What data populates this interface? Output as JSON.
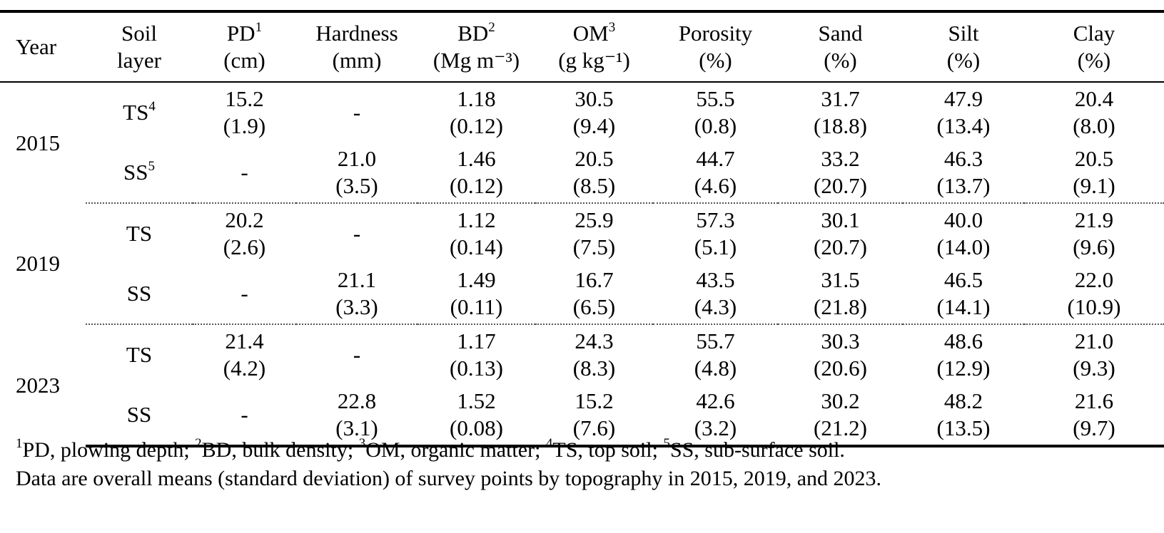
{
  "table": {
    "headers": [
      {
        "key": "year",
        "line1": "Year",
        "sup": "",
        "line2": ""
      },
      {
        "key": "layer",
        "line1": "Soil",
        "sup": "",
        "line2": "layer"
      },
      {
        "key": "pd",
        "line1": "PD",
        "sup": "1",
        "line2": "(cm)"
      },
      {
        "key": "hardness",
        "line1": "Hardness",
        "sup": "",
        "line2": "(mm)"
      },
      {
        "key": "bd",
        "line1": "BD",
        "sup": "2",
        "line2": "(Mg  m⁻³)"
      },
      {
        "key": "om",
        "line1": "OM",
        "sup": "3",
        "line2": "(g kg⁻¹)"
      },
      {
        "key": "porosity",
        "line1": "Porosity",
        "sup": "",
        "line2": "(%)"
      },
      {
        "key": "sand",
        "line1": "Sand",
        "sup": "",
        "line2": "(%)"
      },
      {
        "key": "silt",
        "line1": "Silt",
        "sup": "",
        "line2": "(%)"
      },
      {
        "key": "clay",
        "line1": "Clay",
        "sup": "",
        "line2": "(%)"
      }
    ],
    "groups": [
      {
        "year": "2015",
        "rows": [
          {
            "layer": "TS",
            "layer_sup": "4",
            "pd": [
              "15.2",
              "(1.9)"
            ],
            "hardness": [
              "-",
              ""
            ],
            "bd": [
              "1.18",
              "(0.12)"
            ],
            "om": [
              "30.5",
              "(9.4)"
            ],
            "porosity": [
              "55.5",
              "(0.8)"
            ],
            "sand": [
              "31.7",
              "(18.8)"
            ],
            "silt": [
              "47.9",
              "(13.4)"
            ],
            "clay": [
              "20.4",
              "(8.0)"
            ]
          },
          {
            "layer": "SS",
            "layer_sup": "5",
            "pd": [
              "-",
              ""
            ],
            "hardness": [
              "21.0",
              "(3.5)"
            ],
            "bd": [
              "1.46",
              "(0.12)"
            ],
            "om": [
              "20.5",
              "(8.5)"
            ],
            "porosity": [
              "44.7",
              "(4.6)"
            ],
            "sand": [
              "33.2",
              "(20.7)"
            ],
            "silt": [
              "46.3",
              "(13.7)"
            ],
            "clay": [
              "20.5",
              "(9.1)"
            ]
          }
        ]
      },
      {
        "year": "2019",
        "rows": [
          {
            "layer": "TS",
            "layer_sup": "",
            "pd": [
              "20.2",
              "(2.6)"
            ],
            "hardness": [
              "-",
              ""
            ],
            "bd": [
              "1.12",
              "(0.14)"
            ],
            "om": [
              "25.9",
              "(7.5)"
            ],
            "porosity": [
              "57.3",
              "(5.1)"
            ],
            "sand": [
              "30.1",
              "(20.7)"
            ],
            "silt": [
              "40.0",
              "(14.0)"
            ],
            "clay": [
              "21.9",
              "(9.6)"
            ]
          },
          {
            "layer": "SS",
            "layer_sup": "",
            "pd": [
              "-",
              ""
            ],
            "hardness": [
              "21.1",
              "(3.3)"
            ],
            "bd": [
              "1.49",
              "(0.11)"
            ],
            "om": [
              "16.7",
              "(6.5)"
            ],
            "porosity": [
              "43.5",
              "(4.3)"
            ],
            "sand": [
              "31.5",
              "(21.8)"
            ],
            "silt": [
              "46.5",
              "(14.1)"
            ],
            "clay": [
              "22.0",
              "(10.9)"
            ]
          }
        ]
      },
      {
        "year": "2023",
        "rows": [
          {
            "layer": "TS",
            "layer_sup": "",
            "pd": [
              "21.4",
              "(4.2)"
            ],
            "hardness": [
              "-",
              ""
            ],
            "bd": [
              "1.17",
              "(0.13)"
            ],
            "om": [
              "24.3",
              "(8.3)"
            ],
            "porosity": [
              "55.7",
              "(4.8)"
            ],
            "sand": [
              "30.3",
              "(20.6)"
            ],
            "silt": [
              "48.6",
              "(12.9)"
            ],
            "clay": [
              "21.0",
              "(9.3)"
            ]
          },
          {
            "layer": "SS",
            "layer_sup": "",
            "pd": [
              "-",
              ""
            ],
            "hardness": [
              "22.8",
              "(3.1)"
            ],
            "bd": [
              "1.52",
              "(0.08)"
            ],
            "om": [
              "15.2",
              "(7.6)"
            ],
            "porosity": [
              "42.6",
              "(3.2)"
            ],
            "sand": [
              "30.2",
              "(21.2)"
            ],
            "silt": [
              "48.2",
              "(13.5)"
            ],
            "clay": [
              "21.6",
              "(9.7)"
            ]
          }
        ]
      }
    ]
  },
  "footnotes": {
    "abbreviations": [
      {
        "sup": "1",
        "text": "PD, plowing depth; "
      },
      {
        "sup": "2",
        "text": "BD, bulk density; "
      },
      {
        "sup": "3",
        "text": "OM, organic matter; "
      },
      {
        "sup": "4",
        "text": "TS, top soil; "
      },
      {
        "sup": "5",
        "text": "SS, sub-surface soil."
      }
    ],
    "note": "Data are overall means (standard deviation) of survey points by topography in 2015, 2019, and 2023."
  }
}
